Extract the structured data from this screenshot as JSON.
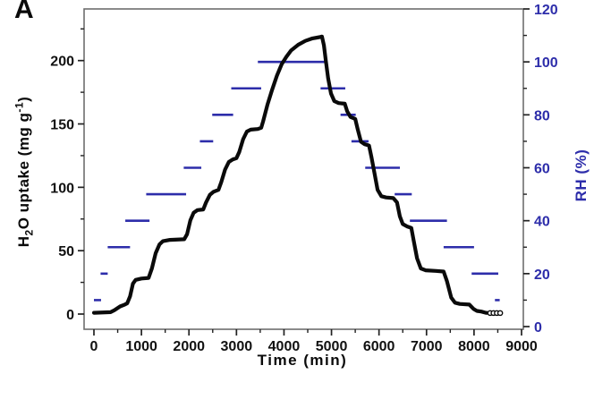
{
  "figure": {
    "panel_label": "A",
    "background": "#ffffff"
  },
  "axes": {
    "x": {
      "label": "Time (min)",
      "major_ticks": [
        0,
        1000,
        2000,
        3000,
        4000,
        5000,
        6000,
        7000,
        8000,
        9000
      ],
      "minor_ticks": [
        500,
        1500,
        2500,
        3500,
        4500,
        5500,
        6500,
        7500,
        8500
      ],
      "tick_label_color": "#111111"
    },
    "y_left": {
      "label_text": "H2O uptake (mg g-1)",
      "label_parts": {
        "pre": "H",
        "sub": "2",
        "mid": "O uptake (mg g",
        "sup": "-1",
        "post": ")"
      },
      "major_ticks": [
        0,
        50,
        100,
        150,
        200
      ],
      "minor_ticks": [
        25,
        75,
        125,
        175,
        225
      ],
      "tick_label_color": "#111111"
    },
    "y_right": {
      "label": "RH (%)",
      "major_ticks": [
        0,
        20,
        40,
        60,
        80,
        100,
        120
      ],
      "minor_ticks": [
        10,
        30,
        50,
        70,
        90,
        110
      ],
      "tick_label_color": "#2d2daa"
    }
  },
  "colors": {
    "uptake_series": "#0a0a0a",
    "rh_series": "#2d2daa",
    "frame": "#6e6e6e",
    "tick": "#222222"
  },
  "chart_data": {
    "type": "line",
    "title": "",
    "xlabel": "Time (min)",
    "ylabel_left": "H2O uptake (mg g-1)",
    "ylabel_right": "RH (%)",
    "xlim": [
      0,
      9000
    ],
    "ylim_left": [
      0,
      240
    ],
    "ylim_right": [
      0,
      120
    ],
    "grid": false,
    "legend": false,
    "series": [
      {
        "name": "H2O uptake",
        "axis": "left",
        "type": "line",
        "color": "#0a0a0a",
        "points": [
          [
            0,
            1
          ],
          [
            350,
            1.5
          ],
          [
            430,
            3
          ],
          [
            550,
            6
          ],
          [
            650,
            7.5
          ],
          [
            700,
            8.5
          ],
          [
            760,
            14
          ],
          [
            820,
            24
          ],
          [
            880,
            27
          ],
          [
            1000,
            28
          ],
          [
            1150,
            28.5
          ],
          [
            1220,
            36
          ],
          [
            1300,
            48
          ],
          [
            1380,
            55
          ],
          [
            1450,
            57.5
          ],
          [
            1600,
            58.5
          ],
          [
            1900,
            59
          ],
          [
            1960,
            63
          ],
          [
            2030,
            74
          ],
          [
            2100,
            80
          ],
          [
            2180,
            82
          ],
          [
            2300,
            82.5
          ],
          [
            2360,
            88
          ],
          [
            2440,
            94
          ],
          [
            2520,
            96.5
          ],
          [
            2620,
            98
          ],
          [
            2680,
            104
          ],
          [
            2760,
            114
          ],
          [
            2840,
            120
          ],
          [
            2920,
            122
          ],
          [
            3000,
            123
          ],
          [
            3060,
            128
          ],
          [
            3140,
            138
          ],
          [
            3220,
            144
          ],
          [
            3300,
            145.5
          ],
          [
            3450,
            146
          ],
          [
            3520,
            147
          ],
          [
            3560,
            152
          ],
          [
            3650,
            165
          ],
          [
            3750,
            177
          ],
          [
            3850,
            188
          ],
          [
            3950,
            197
          ],
          [
            4050,
            203
          ],
          [
            4150,
            208
          ],
          [
            4300,
            212.5
          ],
          [
            4450,
            215.5
          ],
          [
            4600,
            217.5
          ],
          [
            4750,
            218.5
          ],
          [
            4800,
            219
          ],
          [
            4840,
            212
          ],
          [
            4880,
            200
          ],
          [
            4930,
            186
          ],
          [
            4990,
            174
          ],
          [
            5060,
            168
          ],
          [
            5150,
            166.5
          ],
          [
            5280,
            166
          ],
          [
            5330,
            160
          ],
          [
            5400,
            155.5
          ],
          [
            5500,
            154
          ],
          [
            5550,
            146
          ],
          [
            5620,
            136
          ],
          [
            5700,
            134
          ],
          [
            5790,
            133
          ],
          [
            5840,
            124
          ],
          [
            5900,
            112
          ],
          [
            5970,
            98
          ],
          [
            6050,
            93
          ],
          [
            6150,
            92
          ],
          [
            6300,
            91.5
          ],
          [
            6380,
            88
          ],
          [
            6440,
            77
          ],
          [
            6500,
            71
          ],
          [
            6600,
            69
          ],
          [
            6680,
            68
          ],
          [
            6730,
            58
          ],
          [
            6800,
            44
          ],
          [
            6880,
            36
          ],
          [
            6980,
            34.5
          ],
          [
            7200,
            34
          ],
          [
            7360,
            33.5
          ],
          [
            7430,
            26
          ],
          [
            7520,
            13
          ],
          [
            7600,
            9
          ],
          [
            7700,
            8
          ],
          [
            7900,
            7.5
          ],
          [
            7990,
            4
          ],
          [
            8060,
            2.5
          ],
          [
            8150,
            2
          ],
          [
            8250,
            1
          ],
          [
            8280,
            0.9
          ]
        ],
        "tail_marker_points": [
          [
            8340,
            0.8
          ],
          [
            8410,
            0.8
          ],
          [
            8480,
            0.8
          ],
          [
            8550,
            0.8
          ]
        ],
        "peak": {
          "time": 4800,
          "uptake": 219
        }
      },
      {
        "name": "RH program",
        "axis": "right",
        "type": "segments",
        "color": "#2d2daa",
        "segments": [
          {
            "rh": 10,
            "t_start": 0,
            "t_end": 150
          },
          {
            "rh": 20,
            "t_start": 140,
            "t_end": 290
          },
          {
            "rh": 30,
            "t_start": 290,
            "t_end": 760
          },
          {
            "rh": 40,
            "t_start": 660,
            "t_end": 1170
          },
          {
            "rh": 50,
            "t_start": 1100,
            "t_end": 1940
          },
          {
            "rh": 60,
            "t_start": 1890,
            "t_end": 2260
          },
          {
            "rh": 70,
            "t_start": 2230,
            "t_end": 2510
          },
          {
            "rh": 80,
            "t_start": 2490,
            "t_end": 2930
          },
          {
            "rh": 90,
            "t_start": 2890,
            "t_end": 3520
          },
          {
            "rh": 100,
            "t_start": 3450,
            "t_end": 4860
          },
          {
            "rh": 90,
            "t_start": 4770,
            "t_end": 5290
          },
          {
            "rh": 80,
            "t_start": 5190,
            "t_end": 5510
          },
          {
            "rh": 70,
            "t_start": 5420,
            "t_end": 5780
          },
          {
            "rh": 60,
            "t_start": 5710,
            "t_end": 6440
          },
          {
            "rh": 50,
            "t_start": 6330,
            "t_end": 6690
          },
          {
            "rh": 40,
            "t_start": 6650,
            "t_end": 7430
          },
          {
            "rh": 30,
            "t_start": 7360,
            "t_end": 8000
          },
          {
            "rh": 20,
            "t_start": 7950,
            "t_end": 8510
          },
          {
            "rh": 10,
            "t_start": 8440,
            "t_end": 8540
          }
        ]
      }
    ],
    "uptake_plateaus_adsorption": [
      {
        "rh": 10,
        "uptake": 1
      },
      {
        "rh": 20,
        "uptake": 2
      },
      {
        "rh": 30,
        "uptake": 8
      },
      {
        "rh": 40,
        "uptake": 28
      },
      {
        "rh": 50,
        "uptake": 58
      },
      {
        "rh": 60,
        "uptake": 82
      },
      {
        "rh": 70,
        "uptake": 97
      },
      {
        "rh": 80,
        "uptake": 122
      },
      {
        "rh": 90,
        "uptake": 146
      },
      {
        "rh": 100,
        "uptake": 219
      }
    ],
    "uptake_plateaus_desorption": [
      {
        "rh": 90,
        "uptake": 166
      },
      {
        "rh": 80,
        "uptake": 154
      },
      {
        "rh": 70,
        "uptake": 133
      },
      {
        "rh": 60,
        "uptake": 92
      },
      {
        "rh": 50,
        "uptake": 68
      },
      {
        "rh": 40,
        "uptake": 34
      },
      {
        "rh": 30,
        "uptake": 8
      },
      {
        "rh": 20,
        "uptake": 2
      },
      {
        "rh": 10,
        "uptake": 1
      }
    ]
  }
}
